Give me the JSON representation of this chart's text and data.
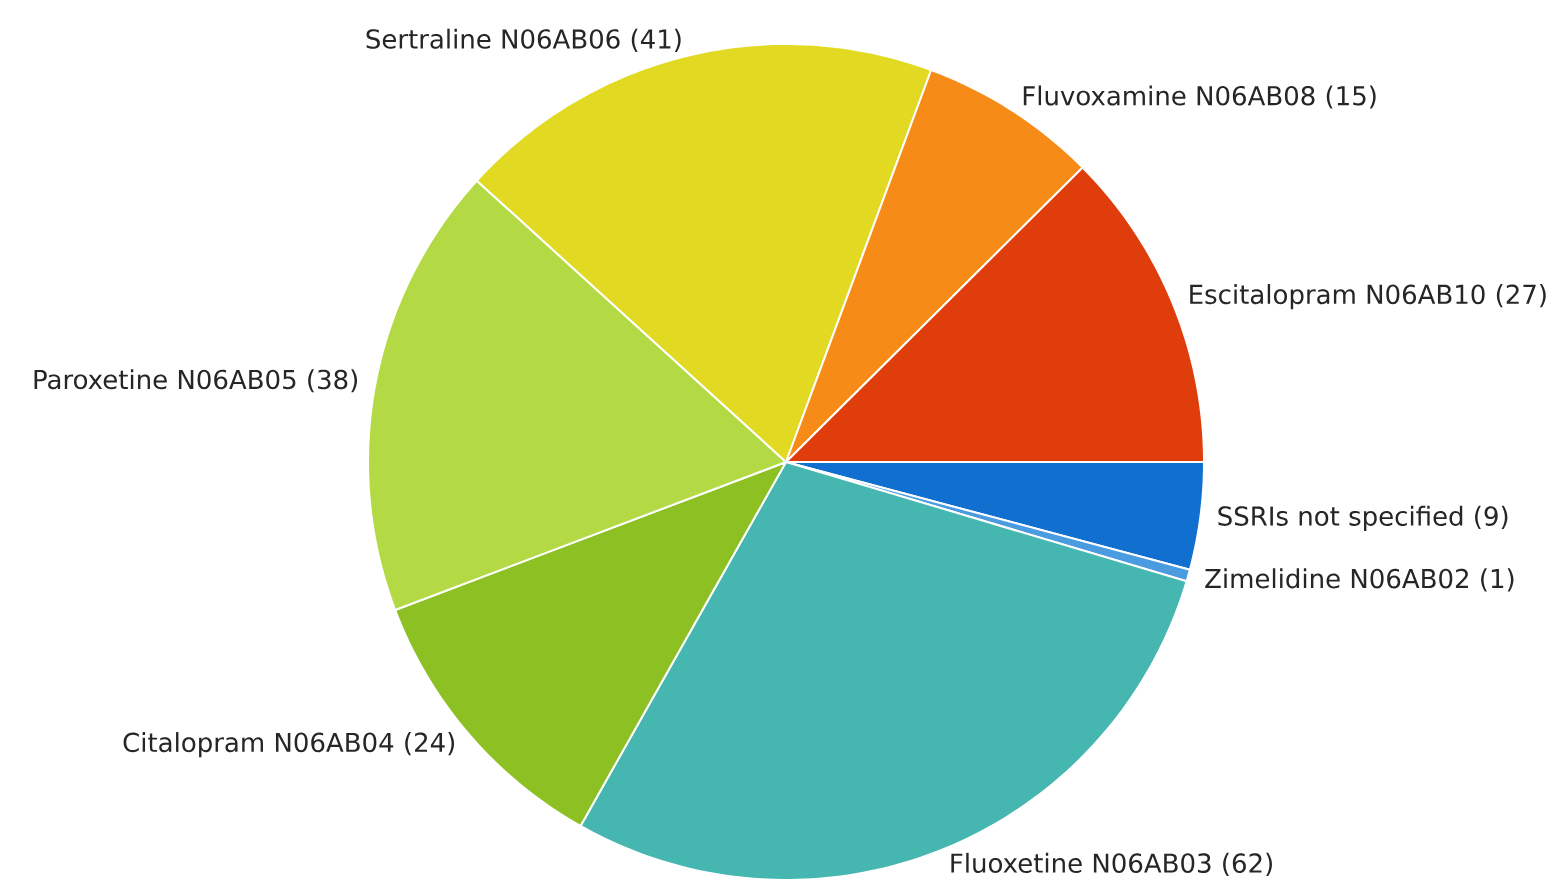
{
  "chart_data": {
    "type": "pie",
    "categories": [
      "SSRIs not specified",
      "Zimelidine N06AB02",
      "Fluoxetine N06AB03",
      "Citalopram N06AB04",
      "Paroxetine N06AB05",
      "Sertraline N06AB06",
      "Fluvoxamine N06AB08",
      "Escitalopram N06AB10"
    ],
    "values": [
      9,
      1,
      62,
      24,
      38,
      41,
      15,
      27
    ],
    "value_labels": [
      "(9)",
      "(1)",
      "(62)",
      "(24)",
      "(38)",
      "(41)",
      "(15)",
      "(27)"
    ],
    "colors": [
      "#1170cf",
      "#4a9be0",
      "#45b6b0",
      "#8cc023",
      "#b3da44",
      "#e2da22",
      "#f68c17",
      "#e03d0c"
    ]
  }
}
